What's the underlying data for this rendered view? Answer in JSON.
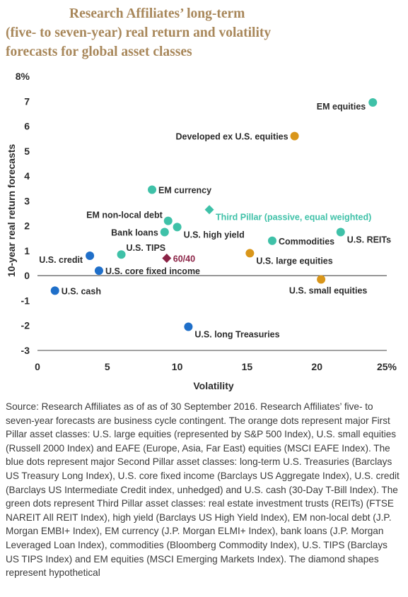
{
  "title_lines": [
    "Research Affiliates’ long-term",
    "(five- to seven-year) real return and volatility",
    "forecasts for global asset classes"
  ],
  "source_text": "Source: Research Affiliates as of as of 30 September 2016. Research Affiliates’ five- to seven-year forecasts are business cycle contingent. The orange dots represent major First Pillar asset classes: U.S. large equities (represented by S&P 500 Index), U.S. small equities (Russell 2000 Index) and EAFE (Europe, Asia, Far East) equities (MSCI EAFE Index). The blue dots represent major Second Pillar asset classes: long-term U.S. Treasuries (Barclays US Treasury Long Index), U.S. core fixed income (Barclays US Aggregate Index), U.S. credit (Barclays US Intermediate Credit index, unhedged) and U.S. cash (30-Day T-Bill Index). The green dots represent Third Pillar asset classes: real estate investment trusts (REITs) (FTSE NAREIT All REIT Index), high yield (Barclays US High Yield Index), EM non-local debt (J.P. Morgan EMBI+ Index), EM currency (J.P. Morgan ELMI+ Index), bank loans (J.P. Morgan Leveraged Loan Index), commodities (Bloomberg Commodity Index), U.S. TIPS (Barclays US TIPS Index) and EM equities (MSCI Emerging Markets Index). The diamond shapes represent hypothetical",
  "colors": {
    "orange": "#d9961a",
    "blue": "#1f6fc9",
    "green": "#3fc1a8",
    "maroon": "#8b2346",
    "title": "#a8875a",
    "third_pillar_label": "#3fc1a8"
  },
  "chart_data": {
    "type": "scatter",
    "xlabel": "Volatility",
    "ylabel": "10-year real return forecasts",
    "xlim": [
      0,
      25
    ],
    "ylim": [
      -3,
      8
    ],
    "x_ticks": [
      0,
      5,
      10,
      15,
      20,
      25
    ],
    "x_tick_labels": [
      "0",
      "5",
      "10",
      "15",
      "20",
      "25%"
    ],
    "y_ticks": [
      -3,
      -2,
      -1,
      0,
      1,
      2,
      3,
      4,
      5,
      6,
      7,
      8
    ],
    "y_tick_labels": [
      "-3",
      "-2",
      "-1",
      "0",
      "1",
      "2",
      "3",
      "4",
      "5",
      "6",
      "7",
      "8%"
    ],
    "grid": false,
    "points": [
      {
        "label": "EM equities",
        "x": 24.0,
        "y": 6.95,
        "group": "green",
        "shape": "circle",
        "label_side": "left-below"
      },
      {
        "label": "Developed ex U.S. equities",
        "x": 18.4,
        "y": 5.6,
        "group": "orange",
        "shape": "circle",
        "label_side": "left"
      },
      {
        "label": "EM currency",
        "x": 8.2,
        "y": 3.45,
        "group": "green",
        "shape": "circle",
        "label_side": "right"
      },
      {
        "label": "Third Pillar (passive, equal weighted)",
        "x": 12.3,
        "y": 2.65,
        "group": "green",
        "shape": "diamond",
        "label_side": "right-below",
        "label_color": "third_pillar_label"
      },
      {
        "label": "EM non-local debt",
        "x": 9.35,
        "y": 2.2,
        "group": "green",
        "shape": "circle",
        "label_side": "left-above"
      },
      {
        "label": "U.S. high yield",
        "x": 10.0,
        "y": 1.95,
        "group": "green",
        "shape": "circle",
        "label_side": "right-below"
      },
      {
        "label": "Bank loans",
        "x": 9.1,
        "y": 1.75,
        "group": "green",
        "shape": "circle",
        "label_side": "left"
      },
      {
        "label": "Commodities",
        "x": 16.8,
        "y": 1.4,
        "group": "green",
        "shape": "circle",
        "label_side": "right"
      },
      {
        "label": "U.S. REITs",
        "x": 21.7,
        "y": 1.75,
        "group": "green",
        "shape": "circle",
        "label_side": "right-below"
      },
      {
        "label": "U.S. TIPS",
        "x": 6.0,
        "y": 0.85,
        "group": "green",
        "shape": "circle",
        "label_side": "right-above"
      },
      {
        "label": "U.S. credit",
        "x": 3.75,
        "y": 0.8,
        "group": "blue",
        "shape": "circle",
        "label_side": "left-below"
      },
      {
        "label": "60/40",
        "x": 9.25,
        "y": 0.7,
        "group": "maroon",
        "shape": "diamond",
        "label_side": "right"
      },
      {
        "label": "U.S. large equities",
        "x": 15.2,
        "y": 0.9,
        "group": "orange",
        "shape": "circle",
        "label_side": "right-below"
      },
      {
        "label": "U.S. core fixed income",
        "x": 4.4,
        "y": 0.2,
        "group": "blue",
        "shape": "circle",
        "label_side": "right"
      },
      {
        "label": "U.S. small equities",
        "x": 20.3,
        "y": -0.15,
        "group": "orange",
        "shape": "circle",
        "label_side": "center-below"
      },
      {
        "label": "U.S. cash",
        "x": 1.25,
        "y": -0.6,
        "group": "blue",
        "shape": "circle",
        "label_side": "right"
      },
      {
        "label": "U.S. long Treasuries",
        "x": 10.8,
        "y": -2.05,
        "group": "blue",
        "shape": "circle",
        "label_side": "right-below"
      }
    ]
  }
}
